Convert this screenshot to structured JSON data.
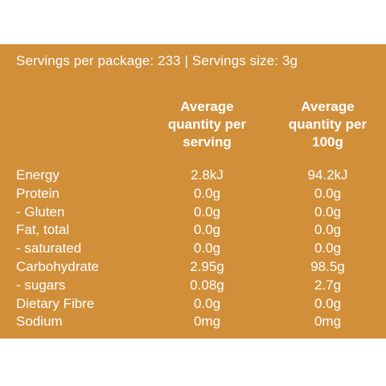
{
  "servings_line": "Servings per package: 233  |  Servings size: 3g",
  "headers": {
    "per_serving": [
      "Average",
      "quantity per",
      "serving"
    ],
    "per_100g": [
      "Average",
      "quantity per",
      "100g"
    ]
  },
  "rows": [
    {
      "name": "Energy",
      "per_serving": "2.8kJ",
      "per_100g": "94.2kJ"
    },
    {
      "name": "Protein",
      "per_serving": "0.0g",
      "per_100g": "0.0g"
    },
    {
      "name": "- Gluten",
      "per_serving": "0.0g",
      "per_100g": "0.0g"
    },
    {
      "name": "Fat, total",
      "per_serving": "0.0g",
      "per_100g": "0.0g"
    },
    {
      "name": "- saturated",
      "per_serving": "0.0g",
      "per_100g": "0.0g"
    },
    {
      "name": "Carbohydrate",
      "per_serving": "2.95g",
      "per_100g": "98.5g"
    },
    {
      "name": "- sugars",
      "per_serving": "0.08g",
      "per_100g": "2.7g"
    },
    {
      "name": "Dietary Fibre",
      "per_serving": "0.0g",
      "per_100g": "0.0g"
    },
    {
      "name": "Sodium",
      "per_serving": "0mg",
      "per_100g": "0mg"
    }
  ],
  "colors": {
    "panel_background": "#d18f3a",
    "text": "#ffffff",
    "page_background": "#ffffff"
  }
}
